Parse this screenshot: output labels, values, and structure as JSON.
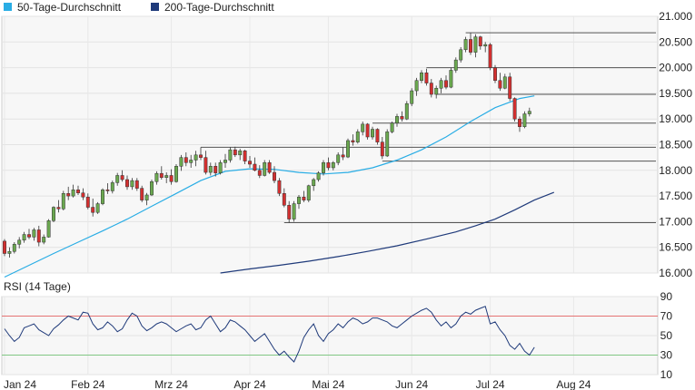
{
  "legend": [
    {
      "label": "50-Tage-Durchschnitt",
      "color": "#29ade5"
    },
    {
      "label": "200-Tage-Durchschnitt",
      "color": "#1f3a7a"
    }
  ],
  "chart_data": [
    {
      "type": "candlestick",
      "ylim": [
        16000,
        21000
      ],
      "y_ticks": [
        "16.000",
        "16.500",
        "17.000",
        "17.500",
        "18.000",
        "18.500",
        "19.000",
        "19.500",
        "20.000",
        "20.500",
        "21.000"
      ],
      "grid": true,
      "legend_position": "top-left",
      "up_color": "#6aa84f",
      "down_color": "#d32f2f",
      "ohlc": [
        [
          16620,
          16660,
          16330,
          16380
        ],
        [
          16380,
          16500,
          16300,
          16420
        ],
        [
          16420,
          16600,
          16380,
          16560
        ],
        [
          16560,
          16700,
          16480,
          16640
        ],
        [
          16640,
          16800,
          16590,
          16750
        ],
        [
          16750,
          16860,
          16660,
          16700
        ],
        [
          16700,
          16880,
          16630,
          16840
        ],
        [
          16840,
          16920,
          16520,
          16600
        ],
        [
          16600,
          16750,
          16560,
          16700
        ],
        [
          16700,
          17050,
          16690,
          17020
        ],
        [
          17020,
          17300,
          16990,
          17280
        ],
        [
          17280,
          17420,
          17180,
          17250
        ],
        [
          17250,
          17600,
          17220,
          17550
        ],
        [
          17550,
          17680,
          17420,
          17500
        ],
        [
          17500,
          17720,
          17470,
          17620
        ],
        [
          17620,
          17700,
          17520,
          17560
        ],
        [
          17560,
          17650,
          17420,
          17480
        ],
        [
          17480,
          17550,
          17240,
          17280
        ],
        [
          17280,
          17450,
          17100,
          17180
        ],
        [
          17180,
          17380,
          17150,
          17350
        ],
        [
          17350,
          17650,
          17320,
          17620
        ],
        [
          17620,
          17750,
          17540,
          17600
        ],
        [
          17600,
          17800,
          17550,
          17760
        ],
        [
          17760,
          17950,
          17700,
          17900
        ],
        [
          17900,
          18000,
          17780,
          17820
        ],
        [
          17820,
          17900,
          17620,
          17680
        ],
        [
          17680,
          17850,
          17620,
          17800
        ],
        [
          17800,
          17850,
          17600,
          17650
        ],
        [
          17650,
          17700,
          17380,
          17420
        ],
        [
          17420,
          17560,
          17320,
          17520
        ],
        [
          17520,
          17820,
          17500,
          17780
        ],
        [
          17780,
          17980,
          17720,
          17940
        ],
        [
          17940,
          18080,
          17820,
          17860
        ],
        [
          17860,
          17960,
          17750,
          17900
        ],
        [
          17900,
          18020,
          17720,
          17780
        ],
        [
          17780,
          18120,
          17760,
          18080
        ],
        [
          18080,
          18300,
          17990,
          18250
        ],
        [
          18250,
          18350,
          18080,
          18150
        ],
        [
          18150,
          18300,
          18050,
          18200
        ],
        [
          18200,
          18380,
          18080,
          18300
        ],
        [
          18300,
          18450,
          18200,
          18250
        ],
        [
          18250,
          18380,
          17920,
          17960
        ],
        [
          17960,
          18150,
          17900,
          18080
        ],
        [
          18080,
          18150,
          17880,
          17950
        ],
        [
          17950,
          18200,
          17920,
          18150
        ],
        [
          18150,
          18320,
          18050,
          18200
        ],
        [
          18200,
          18450,
          18150,
          18400
        ],
        [
          18400,
          18460,
          18260,
          18300
        ],
        [
          18300,
          18420,
          18200,
          18380
        ],
        [
          18380,
          18400,
          18120,
          18180
        ],
        [
          18180,
          18280,
          18050,
          18120
        ],
        [
          18120,
          18250,
          17980,
          18000
        ],
        [
          18000,
          18100,
          17850,
          17900
        ],
        [
          17900,
          18200,
          17880,
          18150
        ],
        [
          18150,
          18200,
          17930,
          17960
        ],
        [
          17960,
          18080,
          17750,
          17800
        ],
        [
          17800,
          17850,
          17500,
          17550
        ],
        [
          17550,
          17650,
          17280,
          17320
        ],
        [
          17320,
          17400,
          16980,
          17050
        ],
        [
          17050,
          17400,
          17000,
          17350
        ],
        [
          17350,
          17520,
          17250,
          17480
        ],
        [
          17480,
          17600,
          17380,
          17420
        ],
        [
          17420,
          17720,
          17380,
          17700
        ],
        [
          17700,
          17850,
          17600,
          17820
        ],
        [
          17820,
          17980,
          17780,
          17950
        ],
        [
          17950,
          18200,
          17900,
          18150
        ],
        [
          18150,
          18250,
          18000,
          18050
        ],
        [
          18050,
          18180,
          18000,
          18150
        ],
        [
          18150,
          18350,
          18100,
          18300
        ],
        [
          18300,
          18450,
          18200,
          18260
        ],
        [
          18260,
          18620,
          18240,
          18580
        ],
        [
          18580,
          18700,
          18480,
          18550
        ],
        [
          18550,
          18800,
          18520,
          18750
        ],
        [
          18750,
          18950,
          18680,
          18900
        ],
        [
          18900,
          18920,
          18600,
          18650
        ],
        [
          18650,
          18850,
          18600,
          18800
        ],
        [
          18800,
          18820,
          18500,
          18550
        ],
        [
          18550,
          18650,
          18220,
          18280
        ],
        [
          18280,
          18800,
          18260,
          18750
        ],
        [
          18750,
          18950,
          18720,
          18920
        ],
        [
          18920,
          19100,
          18850,
          19050
        ],
        [
          19050,
          19150,
          18950,
          19000
        ],
        [
          19000,
          19350,
          18980,
          19300
        ],
        [
          19300,
          19600,
          19250,
          19550
        ],
        [
          19550,
          19800,
          19450,
          19750
        ],
        [
          19750,
          19950,
          19700,
          19900
        ],
        [
          19900,
          19980,
          19650,
          19700
        ],
        [
          19700,
          19780,
          19420,
          19480
        ],
        [
          19480,
          19650,
          19400,
          19600
        ],
        [
          19600,
          19800,
          19500,
          19750
        ],
        [
          19750,
          19850,
          19580,
          19620
        ],
        [
          19620,
          20000,
          19600,
          19950
        ],
        [
          19950,
          20200,
          19900,
          20150
        ],
        [
          20150,
          20400,
          20100,
          20350
        ],
        [
          20350,
          20600,
          20300,
          20550
        ],
        [
          20550,
          20680,
          20250,
          20300
        ],
        [
          20300,
          20650,
          20200,
          20600
        ],
        [
          20600,
          20620,
          20350,
          20420
        ],
        [
          20420,
          20500,
          20300,
          20450
        ],
        [
          20450,
          20480,
          19950,
          20000
        ],
        [
          20000,
          20050,
          19700,
          19750
        ],
        [
          19750,
          19900,
          19550,
          19600
        ],
        [
          19600,
          19880,
          19580,
          19820
        ],
        [
          19820,
          19900,
          19350,
          19400
        ],
        [
          19400,
          19420,
          18950,
          19000
        ],
        [
          19000,
          19050,
          18750,
          18850
        ],
        [
          18850,
          19150,
          18820,
          19100
        ],
        [
          19100,
          19220,
          19050,
          19150
        ]
      ],
      "sma50": [
        [
          0,
          15920
        ],
        [
          5,
          16150
        ],
        [
          10,
          16380
        ],
        [
          15,
          16600
        ],
        [
          20,
          16820
        ],
        [
          25,
          17050
        ],
        [
          30,
          17300
        ],
        [
          35,
          17550
        ],
        [
          40,
          17800
        ],
        [
          45,
          17980
        ],
        [
          50,
          18030
        ],
        [
          55,
          18020
        ],
        [
          60,
          17960
        ],
        [
          65,
          17930
        ],
        [
          70,
          17960
        ],
        [
          75,
          18050
        ],
        [
          80,
          18200
        ],
        [
          85,
          18400
        ],
        [
          90,
          18650
        ],
        [
          95,
          18950
        ],
        [
          100,
          19220
        ],
        [
          105,
          19400
        ],
        [
          108,
          19450
        ]
      ],
      "sma200": [
        [
          44,
          16000
        ],
        [
          50,
          16080
        ],
        [
          56,
          16150
        ],
        [
          62,
          16230
        ],
        [
          68,
          16320
        ],
        [
          74,
          16420
        ],
        [
          80,
          16530
        ],
        [
          86,
          16660
        ],
        [
          92,
          16800
        ],
        [
          96,
          16920
        ],
        [
          100,
          17050
        ],
        [
          104,
          17230
        ],
        [
          108,
          17420
        ],
        [
          112,
          17570
        ]
      ],
      "horizontal_levels": [
        {
          "y": 20680,
          "from_index": 94
        },
        {
          "y": 20000,
          "from_index": 86
        },
        {
          "y": 19480,
          "from_index": 88
        },
        {
          "y": 18920,
          "from_index": 75
        },
        {
          "y": 18450,
          "from_index": 40
        },
        {
          "y": 18180,
          "from_index": 77
        },
        {
          "y": 16980,
          "from_index": 57
        }
      ],
      "x_ticks": [
        {
          "label": "Jan 24",
          "index": 0
        },
        {
          "label": "Feb 24",
          "index": 17
        },
        {
          "label": "Mrz 24",
          "index": 34
        },
        {
          "label": "Apr 24",
          "index": 50
        },
        {
          "label": "Mai 24",
          "index": 66
        },
        {
          "label": "Jun 24",
          "index": 83
        },
        {
          "label": "Jul 24",
          "index": 99
        },
        {
          "label": "Aug 24",
          "index": 116
        }
      ]
    },
    {
      "type": "line",
      "title": "RSI (14 Tage)",
      "ylim": [
        10,
        90
      ],
      "y_ticks": [
        "90",
        "70",
        "50",
        "30",
        "10"
      ],
      "reference_lines": [
        70,
        30
      ],
      "series": [
        {
          "values": [
            57,
            50,
            44,
            48,
            58,
            60,
            62,
            56,
            53,
            50,
            57,
            61,
            66,
            70,
            68,
            66,
            74,
            73,
            62,
            56,
            58,
            64,
            60,
            54,
            57,
            66,
            73,
            70,
            60,
            55,
            58,
            62,
            64,
            62,
            58,
            54,
            57,
            60,
            62,
            56,
            58,
            66,
            70,
            62,
            54,
            58,
            66,
            64,
            60,
            56,
            50,
            44,
            48,
            52,
            44,
            36,
            30,
            34,
            28,
            23,
            34,
            48,
            56,
            62,
            50,
            44,
            52,
            56,
            62,
            58,
            64,
            68,
            66,
            62,
            64,
            68,
            68,
            66,
            64,
            60,
            58,
            62,
            66,
            70,
            73,
            76,
            78,
            74,
            66,
            60,
            64,
            58,
            62,
            70,
            74,
            72,
            76,
            78,
            80,
            62,
            64,
            56,
            50,
            40,
            36,
            42,
            34,
            30,
            38
          ]
        }
      ]
    }
  ]
}
